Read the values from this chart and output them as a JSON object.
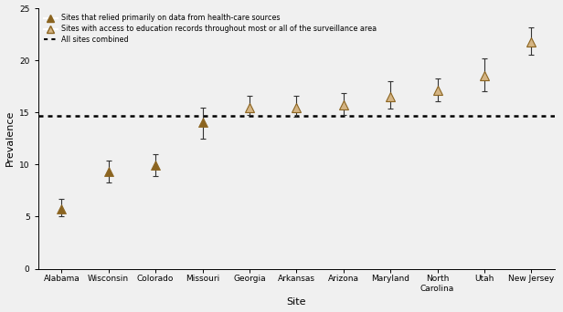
{
  "sites": [
    "Alabama",
    "Wisconsin",
    "Colorado",
    "Missouri",
    "Georgia",
    "Arkansas",
    "Arizona",
    "Maryland",
    "North\nCarolina",
    "Utah",
    "New Jersey"
  ],
  "prevalence": [
    5.7,
    9.3,
    9.9,
    14.1,
    15.5,
    15.5,
    15.7,
    16.5,
    17.1,
    18.5,
    21.8
  ],
  "ci_low": [
    5.0,
    8.3,
    8.9,
    12.5,
    14.8,
    14.6,
    14.8,
    15.4,
    16.1,
    17.0,
    20.5
  ],
  "ci_high": [
    6.7,
    10.4,
    11.0,
    15.5,
    16.6,
    16.6,
    16.9,
    18.0,
    18.3,
    20.2,
    23.2
  ],
  "type": [
    "filled",
    "filled",
    "filled",
    "filled",
    "open",
    "open",
    "open",
    "open",
    "open",
    "open",
    "open"
  ],
  "combined_line": 14.7,
  "filled_color": "#8B6420",
  "open_facecolor": "#D4B483",
  "open_edgecolor": "#8B6420",
  "error_color": "#333333",
  "ylabel": "Prevalence",
  "xlabel": "Site",
  "ylim": [
    0,
    25
  ],
  "yticks": [
    0,
    5,
    10,
    15,
    20,
    25
  ],
  "legend_filled_label": "Sites that relied primarily on data from health-care sources",
  "legend_open_label": "Sites with access to education records throughout most or all of the surveillance area",
  "legend_line_label": "All sites combined",
  "marker_size": 7,
  "figsize": [
    6.16,
    3.42
  ],
  "dpi": 100
}
